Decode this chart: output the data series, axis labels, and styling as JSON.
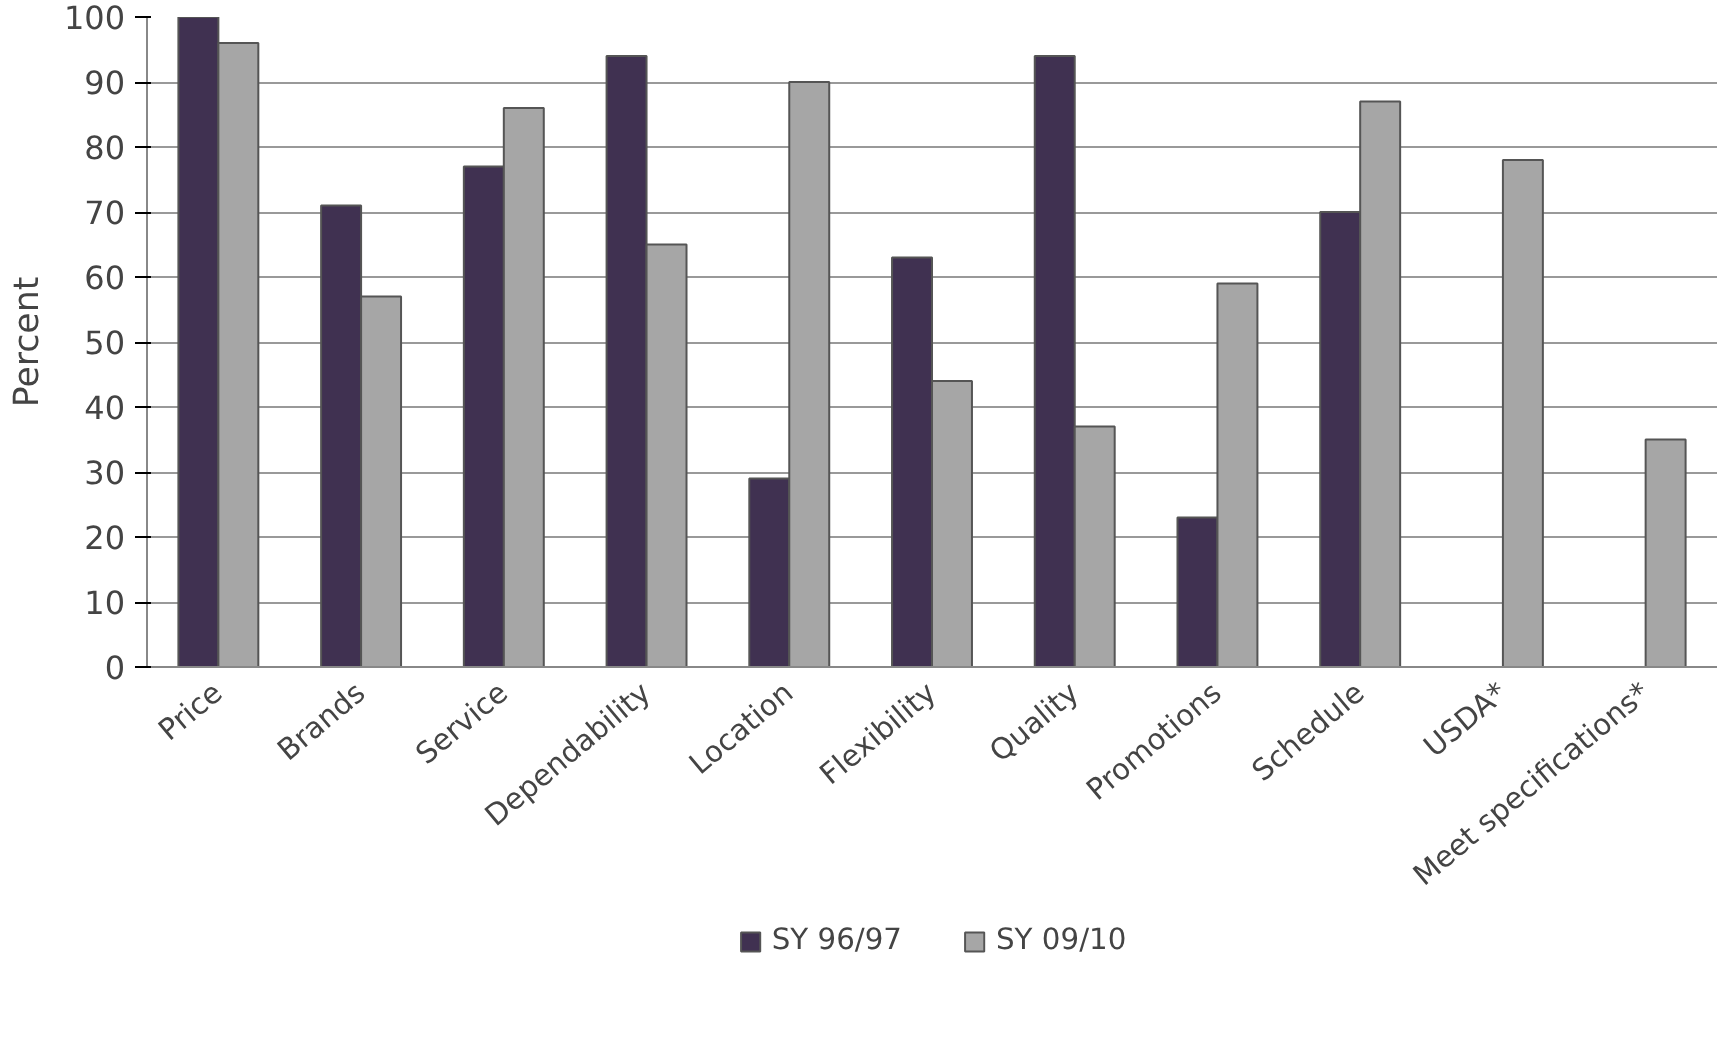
{
  "chart_data": {
    "type": "bar",
    "ylabel": "Percent",
    "categories": [
      "Price",
      "Brands",
      "Service",
      "Dependability",
      "Location",
      "Flexibility",
      "Quality",
      "Promotions",
      "Schedule",
      "USDA*",
      "Meet specifications*"
    ],
    "series": [
      {
        "name": "SY 96/97",
        "color": "#403151",
        "values": [
          100,
          71,
          77,
          94,
          29,
          63,
          94,
          23,
          70,
          null,
          null
        ]
      },
      {
        "name": "SY 09/10",
        "color": "#a6a6a6",
        "values": [
          96,
          57,
          86,
          65,
          90,
          44,
          37,
          59,
          87,
          78,
          35
        ]
      }
    ],
    "ylim": [
      0,
      100
    ],
    "yticks": [
      0,
      10,
      20,
      30,
      40,
      50,
      60,
      70,
      80,
      90,
      100
    ],
    "grid": "y",
    "legend": "bottom"
  }
}
